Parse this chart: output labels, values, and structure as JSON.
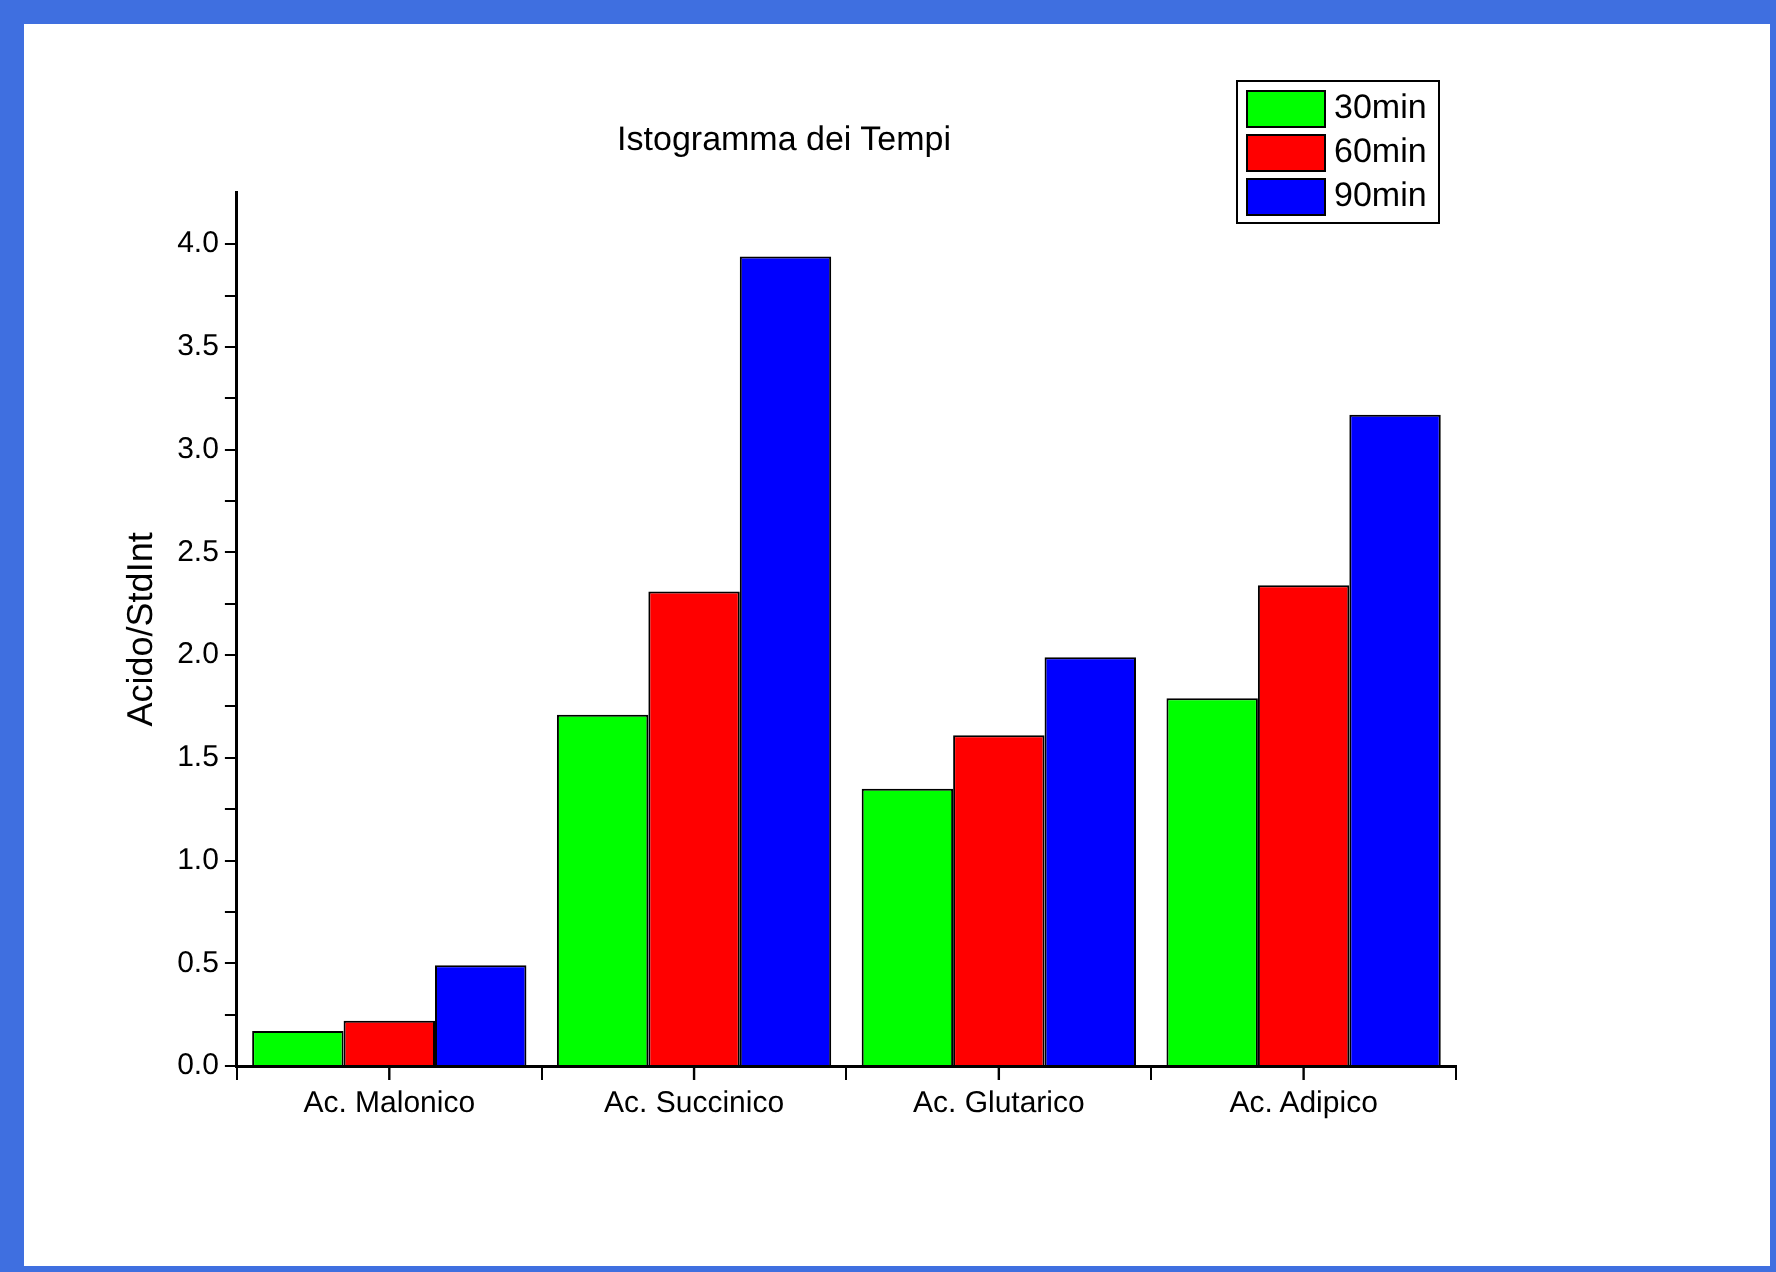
{
  "chart_data": {
    "type": "bar",
    "title": "Istogramma dei Tempi",
    "ylabel": "Acido/StdInt",
    "categories": [
      "Ac. Malonico",
      "Ac. Succinico",
      "Ac. Glutarico",
      "Ac. Adipico"
    ],
    "series": [
      {
        "name": "30min",
        "color": "#00ff00",
        "values": [
          0.17,
          1.71,
          1.35,
          1.79
        ]
      },
      {
        "name": "60min",
        "color": "#ff0000",
        "values": [
          0.22,
          2.31,
          1.61,
          2.34
        ]
      },
      {
        "name": "90min",
        "color": "#0000ff",
        "values": [
          0.49,
          3.94,
          1.99,
          3.17
        ]
      }
    ],
    "ylim": [
      0,
      4.25
    ],
    "yticks": [
      {
        "value": 0,
        "label": "0.0"
      },
      {
        "value": 0.25,
        "label": null
      },
      {
        "value": 0.5,
        "label": "0.5"
      },
      {
        "value": 0.75,
        "label": null
      },
      {
        "value": 1,
        "label": "1.0"
      },
      {
        "value": 1.25,
        "label": null
      },
      {
        "value": 1.5,
        "label": "1.5"
      },
      {
        "value": 1.75,
        "label": null
      },
      {
        "value": 2,
        "label": "2.0"
      },
      {
        "value": 2.25,
        "label": null
      },
      {
        "value": 2.5,
        "label": "2.5"
      },
      {
        "value": 2.75,
        "label": null
      },
      {
        "value": 3,
        "label": "3.0"
      },
      {
        "value": 3.25,
        "label": null
      },
      {
        "value": 3.5,
        "label": "3.5"
      },
      {
        "value": 3.75,
        "label": null
      },
      {
        "value": 4,
        "label": "4.0"
      }
    ],
    "grid": false,
    "legend": "top right"
  }
}
